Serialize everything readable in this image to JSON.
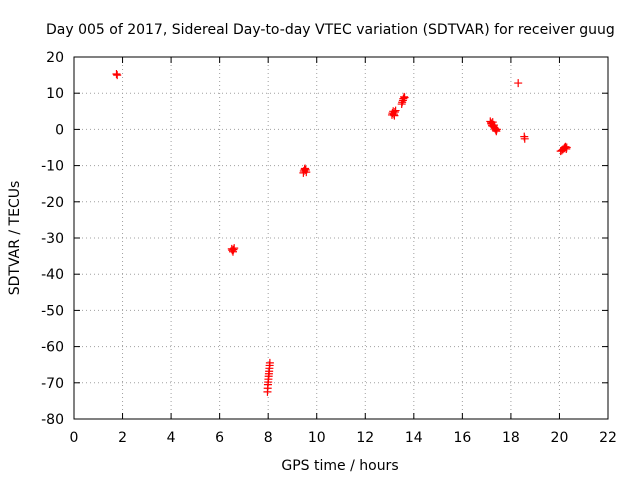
{
  "chart_data": {
    "type": "scatter",
    "title": "Day 005 of 2017, Sidereal Day-to-day VTEC variation (SDTVAR) for receiver guug",
    "xlabel": "GPS time / hours",
    "ylabel": "SDTVAR / TECUs",
    "xlim": [
      0,
      22
    ],
    "ylim": [
      -80,
      20
    ],
    "xticks": [
      0,
      2,
      4,
      6,
      8,
      10,
      12,
      14,
      16,
      18,
      20,
      22
    ],
    "yticks": [
      20,
      10,
      0,
      -10,
      -20,
      -30,
      -40,
      -50,
      -60,
      -70,
      -80
    ],
    "grid": true,
    "marker": "+",
    "color": "#ff0000",
    "series": [
      {
        "name": "SDTVAR",
        "points": [
          [
            1.75,
            15.3
          ],
          [
            1.78,
            15.0
          ],
          [
            6.5,
            -33.0
          ],
          [
            6.52,
            -33.4
          ],
          [
            6.55,
            -33.8
          ],
          [
            6.57,
            -33.2
          ],
          [
            6.6,
            -32.8
          ],
          [
            7.97,
            -72.5
          ],
          [
            7.98,
            -71.5
          ],
          [
            7.99,
            -70.5
          ],
          [
            8.0,
            -69.8
          ],
          [
            8.01,
            -69.0
          ],
          [
            8.02,
            -68.2
          ],
          [
            8.03,
            -67.5
          ],
          [
            8.04,
            -66.8
          ],
          [
            8.05,
            -66.0
          ],
          [
            8.06,
            -65.2
          ],
          [
            8.07,
            -64.5
          ],
          [
            9.45,
            -12.0
          ],
          [
            9.47,
            -11.5
          ],
          [
            9.5,
            -11.0
          ],
          [
            9.52,
            -10.8
          ],
          [
            9.55,
            -11.2
          ],
          [
            9.57,
            -11.8
          ],
          [
            13.1,
            4.0
          ],
          [
            13.12,
            4.5
          ],
          [
            13.15,
            5.0
          ],
          [
            13.18,
            4.2
          ],
          [
            13.2,
            3.8
          ],
          [
            13.22,
            4.8
          ],
          [
            13.25,
            5.2
          ],
          [
            13.5,
            7.0
          ],
          [
            13.52,
            7.5
          ],
          [
            13.55,
            8.0
          ],
          [
            13.57,
            8.5
          ],
          [
            13.6,
            9.0
          ],
          [
            13.62,
            8.8
          ],
          [
            17.15,
            2.2
          ],
          [
            17.18,
            1.8
          ],
          [
            17.2,
            1.5
          ],
          [
            17.22,
            1.0
          ],
          [
            17.25,
            2.0
          ],
          [
            17.28,
            0.8
          ],
          [
            17.3,
            1.2
          ],
          [
            17.32,
            0.5
          ],
          [
            17.35,
            0.2
          ],
          [
            17.38,
            -0.2
          ],
          [
            17.4,
            -0.5
          ],
          [
            17.42,
            0.0
          ],
          [
            18.3,
            12.8
          ],
          [
            18.55,
            -2.0
          ],
          [
            18.57,
            -2.6
          ],
          [
            20.05,
            -6.0
          ],
          [
            20.1,
            -5.8
          ],
          [
            20.15,
            -5.5
          ],
          [
            20.2,
            -5.2
          ],
          [
            20.22,
            -5.0
          ],
          [
            20.25,
            -4.8
          ],
          [
            20.28,
            -5.4
          ],
          [
            20.3,
            -5.0
          ]
        ]
      }
    ]
  }
}
